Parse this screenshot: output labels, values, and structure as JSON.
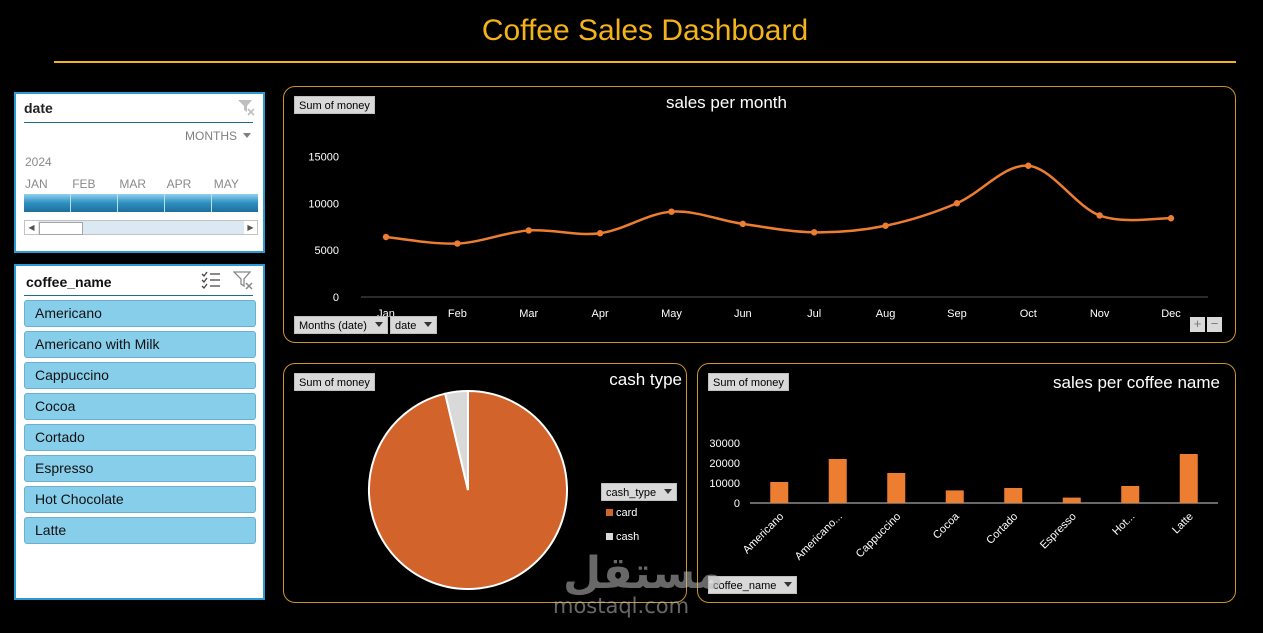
{
  "dashboard": {
    "title": "Coffee Sales Dashboard"
  },
  "timeline": {
    "header": "date",
    "level": "MONTHS",
    "year": "2024",
    "months": [
      "JAN",
      "FEB",
      "MAR",
      "APR",
      "MAY"
    ]
  },
  "slicer": {
    "header": "coffee_name",
    "items": [
      "Americano",
      "Americano with Milk",
      "Cappuccino",
      "Cocoa",
      "Cortado",
      "Espresso",
      "Hot Chocolate",
      "Latte"
    ]
  },
  "panels": {
    "line": {
      "title": "sales per month",
      "value_button": "Sum of money",
      "axis_button_1": "Months (date)",
      "axis_button_2": "date",
      "zoom_in": "+",
      "zoom_out": "−"
    },
    "pie": {
      "title": "cash type",
      "value_button": "Sum of money",
      "legend_button": "cash_type"
    },
    "bar": {
      "title": "sales per coffee name",
      "value_button": "Sum of money",
      "axis_button": "coffee_name"
    }
  },
  "colors": {
    "accent": "#f4b21b",
    "series": "#ed7d31",
    "pie_card": "#d2632a",
    "pie_cash": "#d9d9d9"
  },
  "watermark": {
    "arabic": "مستقل",
    "url": "mostaql.com"
  },
  "chart_data": [
    {
      "type": "line",
      "title": "sales per month",
      "categories": [
        "Jan",
        "Feb",
        "Mar",
        "Apr",
        "May",
        "Jun",
        "Jul",
        "Aug",
        "Sep",
        "Oct",
        "Nov",
        "Dec"
      ],
      "values": [
        6400,
        5700,
        7100,
        6800,
        9100,
        7800,
        6900,
        7600,
        10000,
        14000,
        8700,
        8400
      ],
      "yticks": [
        0,
        5000,
        10000,
        15000
      ],
      "ylim": [
        0,
        16000
      ],
      "smooth": true,
      "markers": true
    },
    {
      "type": "pie",
      "title": "cash type",
      "labels": [
        "card",
        "cash"
      ],
      "values": [
        96.3,
        3.7
      ],
      "legend": "right"
    },
    {
      "type": "bar",
      "title": "sales per coffee name",
      "categories": [
        "Americano",
        "Americano...",
        "Cappuccino",
        "Cocoa",
        "Cortado",
        "Espresso",
        "Hot...",
        "Latte"
      ],
      "values": [
        10500,
        22000,
        15000,
        6300,
        7500,
        2700,
        8500,
        24500
      ],
      "yticks": [
        0,
        10000,
        20000,
        30000
      ],
      "ylim": [
        0,
        30000
      ]
    }
  ]
}
